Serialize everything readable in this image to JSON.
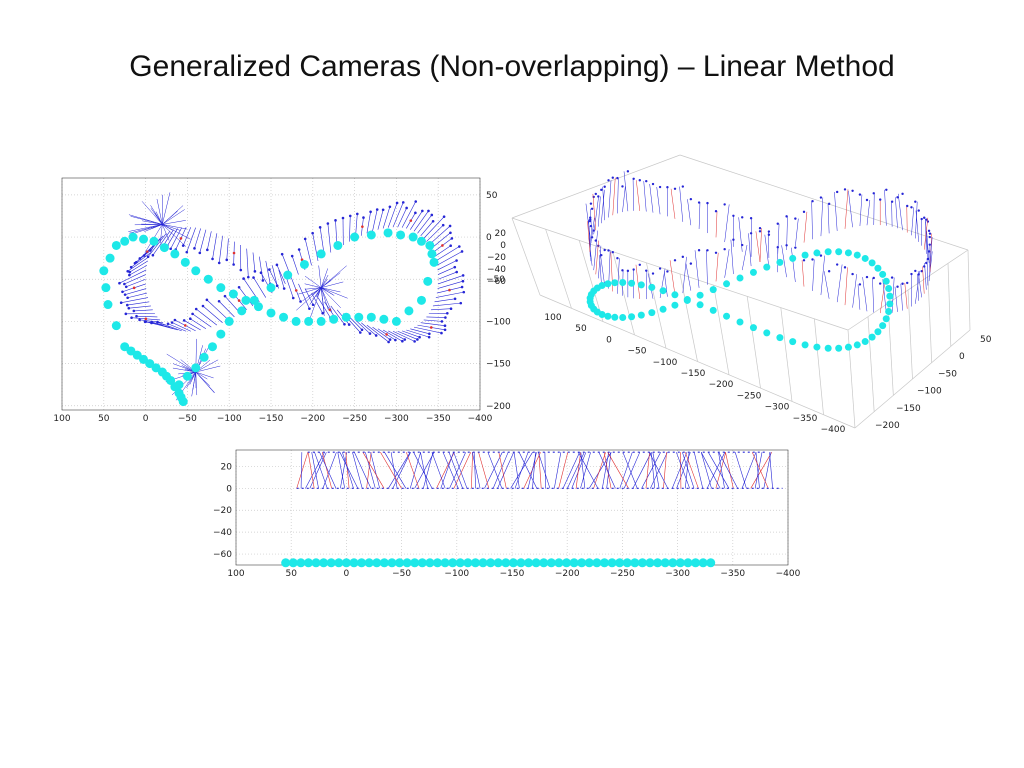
{
  "slide": {
    "title": "Generalized Cameras (Non-overlapping) – Linear Method"
  },
  "colors": {
    "trajectory": "#1ee8e8",
    "camera_rays": "#2626d6",
    "camera_rays_secondary": "#e03030",
    "accent": "#22bb22",
    "grid": "#c8c8c8",
    "axis": "#444444"
  },
  "chart_data": [
    {
      "type": "scatter",
      "view": "top",
      "x_ticks": [
        "100",
        "50",
        "0",
        "−50",
        "−100",
        "−150",
        "−200",
        "−250",
        "−300",
        "−350",
        "−400"
      ],
      "y_ticks": [
        "50",
        "0",
        "−50",
        "−100",
        "−150",
        "−200"
      ],
      "xlim": [
        100,
        -400
      ],
      "ylim": [
        -205,
        70
      ],
      "grid": true,
      "trajectory": {
        "shape": "figure-eight",
        "x": [
          -45,
          -40,
          -30,
          -20,
          -5,
          10,
          25,
          45,
          50,
          35,
          15,
          -10,
          -35,
          -60,
          -90,
          -120,
          -150,
          -180,
          -210,
          -240,
          -270,
          -300,
          -330,
          -345,
          -340,
          -320,
          -290,
          -250,
          -210,
          -170,
          -130,
          -100,
          -80,
          -60,
          -40
        ],
        "y": [
          -195,
          -185,
          -170,
          -160,
          -150,
          -140,
          -130,
          -80,
          -40,
          -10,
          0,
          -5,
          -20,
          -40,
          -60,
          -75,
          -90,
          -100,
          -100,
          -95,
          -95,
          -100,
          -75,
          -30,
          -10,
          0,
          5,
          0,
          -20,
          -45,
          -75,
          -100,
          -130,
          -155,
          -175
        ]
      }
    },
    {
      "type": "scatter",
      "view": "3d",
      "z_ticks": [
        "20",
        "0",
        "−20",
        "−40",
        "−60"
      ],
      "x_ticks": [
        "100",
        "50",
        "0",
        "−50",
        "−100",
        "−150",
        "−200",
        "−250",
        "−300",
        "−350",
        "−400"
      ],
      "y_ticks": [
        "50",
        "0",
        "−50",
        "−100",
        "−150",
        "−200"
      ],
      "grid": true
    },
    {
      "type": "scatter",
      "view": "side",
      "x_ticks": [
        "100",
        "50",
        "0",
        "−50",
        "−100",
        "−150",
        "−200",
        "−250",
        "−300",
        "−350",
        "−400"
      ],
      "y_ticks": [
        "20",
        "0",
        "−20",
        "−40",
        "−60"
      ],
      "xlim": [
        100,
        -400
      ],
      "ylim": [
        -70,
        35
      ],
      "grid": true,
      "trajectory": {
        "x_range": [
          55,
          -330
        ],
        "y": -68
      }
    }
  ]
}
